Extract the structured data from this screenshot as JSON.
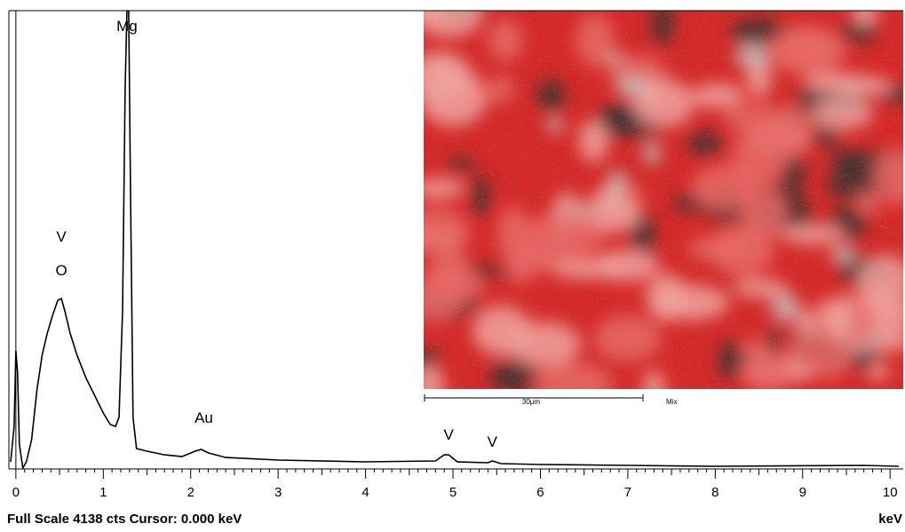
{
  "chart_data": {
    "type": "line",
    "x": [
      -0.06,
      -0.02,
      0.0,
      0.02,
      0.04,
      0.08,
      0.12,
      0.18,
      0.24,
      0.3,
      0.36,
      0.42,
      0.48,
      0.52,
      0.56,
      0.62,
      0.7,
      0.8,
      0.9,
      1.0,
      1.08,
      1.14,
      1.18,
      1.22,
      1.25,
      1.27,
      1.29,
      1.31,
      1.34,
      1.38,
      1.5,
      1.7,
      1.9,
      2.05,
      2.12,
      2.2,
      2.4,
      3.0,
      4.0,
      4.8,
      4.9,
      4.95,
      5.05,
      5.4,
      5.45,
      5.55,
      6.0,
      7.0,
      8.0,
      9.7,
      10.1
    ],
    "values": [
      56,
      377,
      1060,
      859,
      217,
      0,
      56,
      257,
      699,
      1020,
      1221,
      1381,
      1518,
      1534,
      1421,
      1221,
      1020,
      819,
      658,
      498,
      394,
      377,
      458,
      1421,
      3429,
      4138,
      4138,
      2626,
      458,
      177,
      153,
      120,
      104,
      153,
      169,
      137,
      96,
      72,
      56,
      64,
      120,
      120,
      56,
      48,
      64,
      40,
      32,
      24,
      16,
      24,
      16
    ],
    "color": "#000000",
    "xlim": [
      -0.08,
      10.13
    ],
    "ylim": [
      0,
      4138
    ],
    "xticks": [
      0,
      1,
      2,
      3,
      4,
      5,
      6,
      7,
      8,
      9,
      10
    ],
    "annotations": [
      {
        "text": "Mg",
        "x": 1.27
      },
      {
        "text": "V",
        "x": 0.52
      },
      {
        "text": "O",
        "x": 0.52
      },
      {
        "text": "Au",
        "x": 2.15
      },
      {
        "text": "V",
        "x": 4.95
      },
      {
        "text": "V",
        "x": 5.45
      }
    ],
    "footer": "Full Scale 4138 cts  Cursor: 0.000 keV",
    "x_unit": "keV",
    "inset": {
      "scale_bar_label": "30µm",
      "map_label": "Mix"
    }
  }
}
